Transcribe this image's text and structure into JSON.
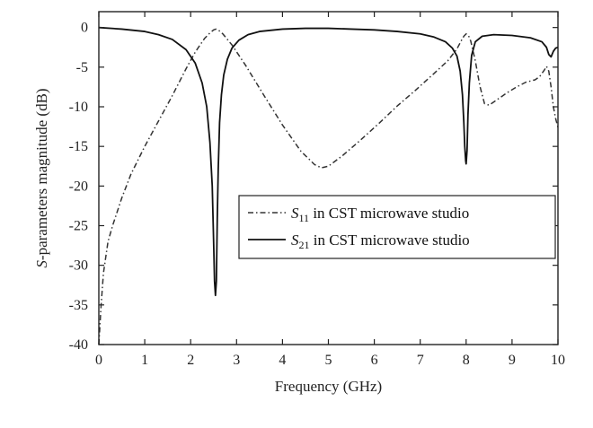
{
  "chart_data": {
    "type": "line",
    "title": "",
    "xlabel": "Frequency (GHz)",
    "ylabel_prefix": "S",
    "ylabel_rest": "-parameters magnitude (dB)",
    "xlim": [
      0,
      10
    ],
    "ylim": [
      -40,
      2
    ],
    "xticks": [
      0,
      1,
      2,
      3,
      4,
      5,
      6,
      7,
      8,
      9,
      10
    ],
    "yticks": [
      0,
      -5,
      -10,
      -15,
      -20,
      -25,
      -30,
      -35,
      -40
    ],
    "grid": false,
    "legend_position": "center-right",
    "series": [
      {
        "name": "S11 in CST microwave studio",
        "name_symbol": "S",
        "name_sub": "11",
        "name_rest": " in CST microwave studio",
        "style": "dash-dot",
        "color": "#333333",
        "x": [
          0.0,
          0.02,
          0.05,
          0.1,
          0.2,
          0.3,
          0.5,
          0.7,
          1.0,
          1.3,
          1.6,
          1.9,
          2.1,
          2.3,
          2.4,
          2.5,
          2.55,
          2.6,
          2.7,
          2.9,
          3.2,
          3.6,
          4.0,
          4.4,
          4.7,
          4.85,
          5.0,
          5.3,
          5.7,
          6.1,
          6.5,
          6.9,
          7.3,
          7.6,
          7.8,
          7.9,
          7.95,
          8.0,
          8.05,
          8.1,
          8.2,
          8.3,
          8.4,
          8.5,
          8.7,
          8.9,
          9.1,
          9.3,
          9.5,
          9.6,
          9.7,
          9.75,
          9.8,
          9.85,
          9.9,
          9.95,
          10.0
        ],
        "y": [
          -40,
          -38,
          -35,
          -31,
          -27,
          -25,
          -21.5,
          -18.5,
          -15,
          -11.8,
          -8.6,
          -5.2,
          -3.1,
          -1.4,
          -0.8,
          -0.3,
          -0.2,
          -0.3,
          -0.8,
          -2.2,
          -4.8,
          -8.6,
          -12.3,
          -15.6,
          -17.3,
          -17.7,
          -17.5,
          -16.2,
          -14.2,
          -12.1,
          -9.9,
          -7.9,
          -5.8,
          -4.2,
          -2.7,
          -1.6,
          -1.1,
          -0.8,
          -1.0,
          -1.7,
          -4.2,
          -7.4,
          -9.6,
          -9.8,
          -9.0,
          -8.2,
          -7.5,
          -6.9,
          -6.6,
          -6.2,
          -5.4,
          -4.9,
          -5.5,
          -7.5,
          -10,
          -11.5,
          -12.6
        ]
      },
      {
        "name": "S21 in CST microwave studio",
        "name_symbol": "S",
        "name_sub": "21",
        "name_rest": " in CST microwave studio",
        "style": "solid",
        "color": "#111111",
        "x": [
          0.0,
          0.5,
          1.0,
          1.3,
          1.6,
          1.9,
          2.1,
          2.25,
          2.35,
          2.42,
          2.47,
          2.5,
          2.52,
          2.54,
          2.56,
          2.58,
          2.6,
          2.63,
          2.67,
          2.72,
          2.8,
          2.9,
          3.05,
          3.25,
          3.5,
          4.0,
          4.5,
          5.0,
          5.5,
          6.0,
          6.5,
          7.0,
          7.3,
          7.55,
          7.7,
          7.8,
          7.87,
          7.92,
          7.95,
          7.97,
          7.99,
          8.0,
          8.02,
          8.04,
          8.07,
          8.12,
          8.2,
          8.35,
          8.6,
          9.0,
          9.4,
          9.65,
          9.75,
          9.8,
          9.85,
          9.9,
          9.95,
          10.0
        ],
        "y": [
          0,
          -0.2,
          -0.5,
          -0.9,
          -1.5,
          -2.8,
          -4.5,
          -7.0,
          -10.0,
          -14.5,
          -20.0,
          -27.0,
          -32.0,
          -33.8,
          -32.0,
          -24.0,
          -18.0,
          -12.0,
          -8.5,
          -6.0,
          -4.0,
          -2.6,
          -1.6,
          -0.9,
          -0.5,
          -0.2,
          -0.1,
          -0.1,
          -0.2,
          -0.3,
          -0.5,
          -0.8,
          -1.2,
          -1.8,
          -2.6,
          -3.6,
          -5.5,
          -8.5,
          -12.0,
          -15.0,
          -16.8,
          -17.2,
          -15.5,
          -11.0,
          -7.0,
          -3.5,
          -1.8,
          -1.1,
          -0.9,
          -1.0,
          -1.3,
          -1.8,
          -2.5,
          -3.4,
          -3.7,
          -3.0,
          -2.6,
          -2.5
        ]
      }
    ]
  }
}
